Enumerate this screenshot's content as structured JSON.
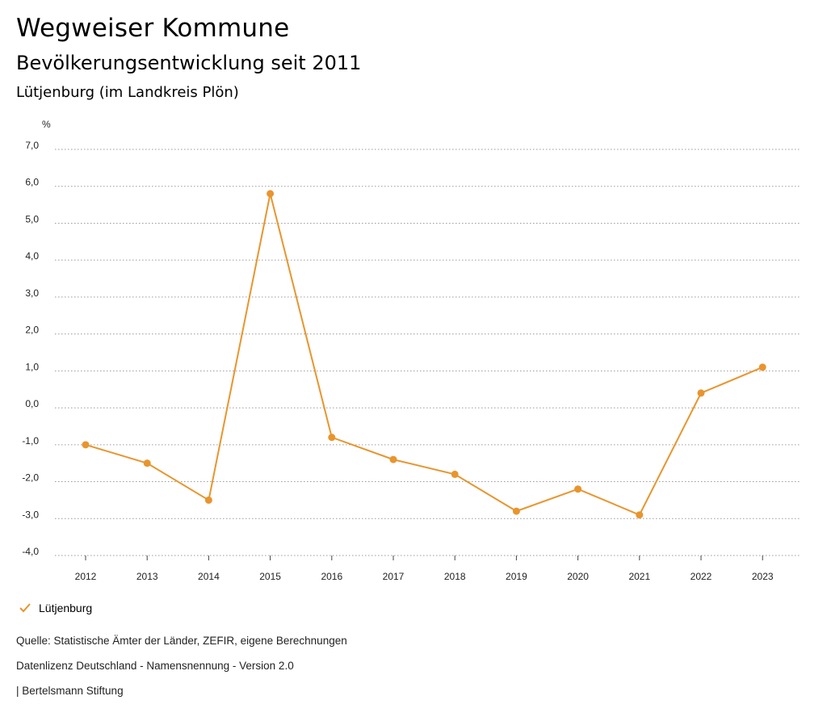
{
  "header": {
    "title": "Wegweiser Kommune",
    "subtitle": "Bevölkerungsentwicklung seit 2011",
    "region": "Lütjenburg (im Landkreis Plön)"
  },
  "chart_data": {
    "type": "line",
    "unit_label": "%",
    "x": [
      "2012",
      "2013",
      "2014",
      "2015",
      "2016",
      "2017",
      "2018",
      "2019",
      "2020",
      "2021",
      "2022",
      "2023"
    ],
    "series": [
      {
        "name": "Lütjenburg",
        "color": "#e8952e",
        "values": [
          -1.0,
          -1.5,
          -2.5,
          5.8,
          -0.8,
          -1.4,
          -1.8,
          -2.8,
          -2.2,
          -2.9,
          0.4,
          1.1
        ]
      }
    ],
    "ylim": [
      -4.0,
      7.0
    ],
    "yticks": [
      7.0,
      6.0,
      5.0,
      4.0,
      3.0,
      2.0,
      1.0,
      0.0,
      -1.0,
      -2.0,
      -3.0,
      -4.0
    ],
    "ytick_labels": [
      "7,0",
      "6,0",
      "5,0",
      "4,0",
      "3,0",
      "2,0",
      "1,0",
      "0,0",
      "-1,0",
      "-2,0",
      "-3,0",
      "-4,0"
    ],
    "grid": true,
    "legend": "bottom-left"
  },
  "legend": {
    "label": "Lütjenburg",
    "color": "#e8952e"
  },
  "footer": {
    "source": "Quelle: Statistische Ämter der Länder, ZEFIR, eigene Berechnungen",
    "license": "Datenlizenz Deutschland - Namensnennung - Version 2.0",
    "publisher": "| Bertelsmann Stiftung"
  }
}
